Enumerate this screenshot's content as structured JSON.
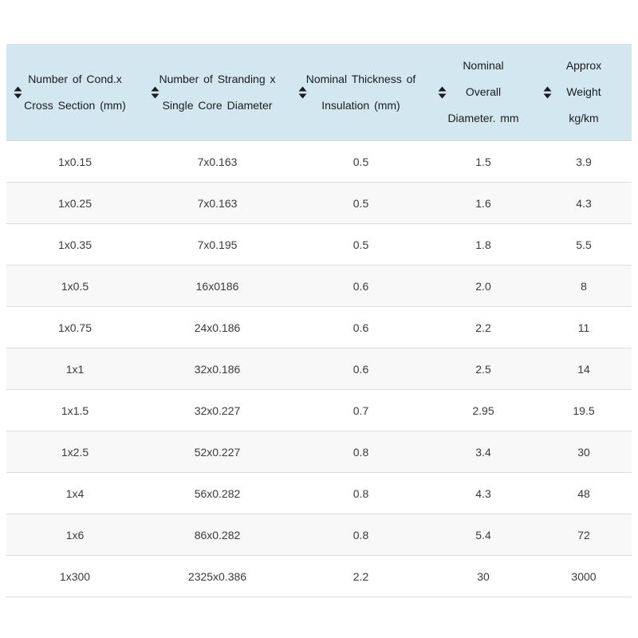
{
  "theme": {
    "page_bg": "#ffffff",
    "header_bg": "#d3e7f1",
    "header_text": "#1b1b1b",
    "body_text": "#3a3a3a",
    "stripe_bg": "#f8f8f8",
    "border_color": "#dcdcdc",
    "sort_icon_color": "#1b1b1b"
  },
  "table": {
    "columns": [
      {
        "label": "Number of Cond.x\nCross Section (mm)",
        "sort_icon": "sort-both-icon"
      },
      {
        "label": "Number of Stranding x\nSingle Core Diameter",
        "sort_icon": "sort-both-icon"
      },
      {
        "label": "Nominal Thickness of\nInsulation (mm)",
        "sort_icon": "sort-both-icon"
      },
      {
        "label": "Nominal\nOverall\nDiameter. mm",
        "sort_icon": "sort-both-icon"
      },
      {
        "label": "Approx\nWeight\nkg/km",
        "sort_icon": "sort-both-icon"
      }
    ],
    "rows": [
      [
        "1x0.15",
        "7x0.163",
        "0.5",
        "1.5",
        "3.9"
      ],
      [
        "1x0.25",
        "7x0.163",
        "0.5",
        "1.6",
        "4.3"
      ],
      [
        "1x0.35",
        "7x0.195",
        "0.5",
        "1.8",
        "5.5"
      ],
      [
        "1x0.5",
        "16x0186",
        "0.6",
        "2.0",
        "8"
      ],
      [
        "1x0.75",
        "24x0.186",
        "0.6",
        "2.2",
        "11"
      ],
      [
        "1x1",
        "32x0.186",
        "0.6",
        "2.5",
        "14"
      ],
      [
        "1x1.5",
        "32x0.227",
        "0.7",
        "2.95",
        "19.5"
      ],
      [
        "1x2.5",
        "52x0.227",
        "0.8",
        "3.4",
        "30"
      ],
      [
        "1x4",
        "56x0.282",
        "0.8",
        "4.3",
        "48"
      ],
      [
        "1x6",
        "86x0.282",
        "0.8",
        "5.4",
        "72"
      ],
      [
        "1x300",
        "2325x0.386",
        "2.2",
        "30",
        "3000"
      ]
    ]
  }
}
